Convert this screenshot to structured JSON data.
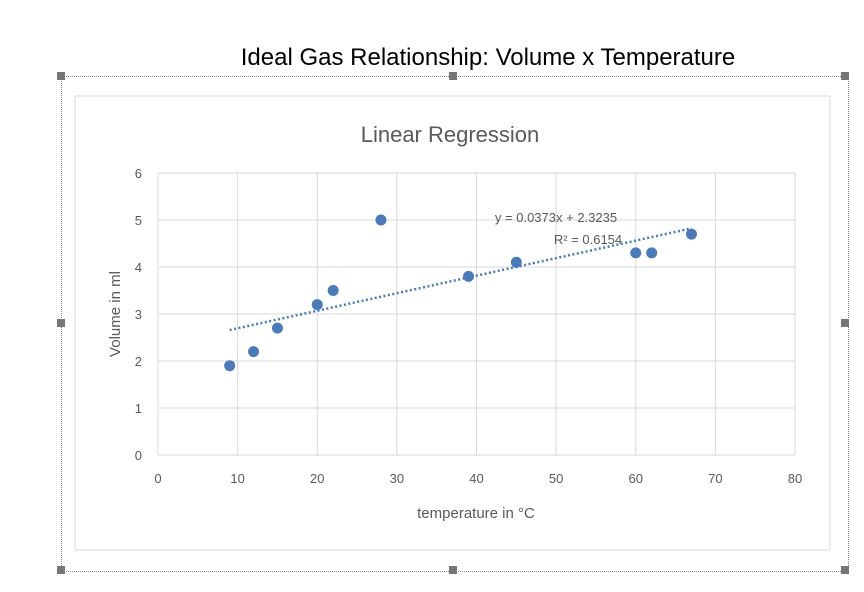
{
  "outer_title": "Ideal Gas Relationship: Volume x Temperature",
  "chart_data": {
    "type": "scatter",
    "title": "Linear Regression",
    "xlabel": "temperature in °C",
    "ylabel": "Volume in ml",
    "xlim": [
      0,
      80
    ],
    "ylim": [
      0,
      6
    ],
    "xticks": [
      0,
      10,
      20,
      30,
      40,
      50,
      60,
      70,
      80
    ],
    "yticks": [
      0,
      1,
      2,
      3,
      4,
      5,
      6
    ],
    "grid": true,
    "legend": "none",
    "points": [
      [
        9,
        1.9
      ],
      [
        12,
        2.2
      ],
      [
        15,
        2.7
      ],
      [
        20,
        3.2
      ],
      [
        22,
        3.5
      ],
      [
        28,
        5.0
      ],
      [
        39,
        3.8
      ],
      [
        45,
        4.1
      ],
      [
        60,
        4.3
      ],
      [
        62,
        4.3
      ],
      [
        67,
        4.7
      ]
    ],
    "trendline": {
      "type": "linear",
      "slope": 0.0373,
      "intercept": 2.3235,
      "x_range": [
        9,
        67
      ],
      "style": "dotted"
    },
    "equation_label": "y = 0.0373x + 2.3235",
    "r2_label": "R² = 0.6154",
    "marker_color": "#4a7ab8",
    "trendline_color": "#4a7ab8"
  }
}
